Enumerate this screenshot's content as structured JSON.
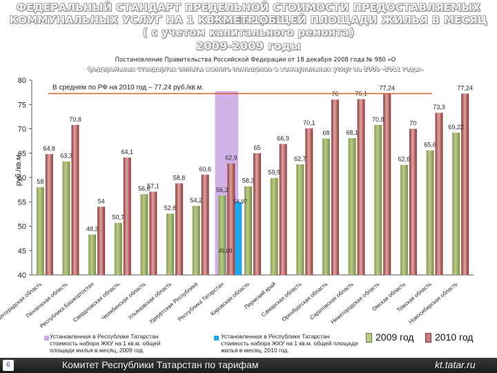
{
  "header": {
    "title_lines": [
      "ФЕДЕРАЛЬНЫЙ СТАНДАРТ ПРЕДЕЛЬНОЙ СТОИМОСТИ ПРЕДОСТАВЛЯЕМЫХ ЖИЛИЩНО-",
      "КОММУНАЛЬНЫХ УСЛУГ НА 1 КВ. МЕТР ОБЩЕЙ ПЛОЩАДИ ЖИЛЬЯ В МЕСЯЦ",
      "( с учетом капитального ремонта)",
      "2009-2009 годы"
    ],
    "subtitle_1": "Постановление Правительства Российской Федерации от 18 декабря 2008 года № 980 «О",
    "subtitle_2": "федеральных стандартах оплаты жилого помещения и коммунальных услуг на 2009 -2011 годы»"
  },
  "colors": {
    "bar_2009": "#b9c98a",
    "bar_2010": "#c77b7b",
    "tatarstan_highlight": "#c9a6e6",
    "tatarstan_2010_bar": "#21a6e8",
    "average_line": "#e05a2b"
  },
  "chart_data": {
    "type": "bar",
    "ylabel": "руб./кв.м.",
    "ylim": [
      40,
      80
    ],
    "yticks": [
      40,
      45,
      50,
      55,
      60,
      65,
      70,
      75,
      80
    ],
    "average_label": "В среднем по РФ на 2010 год – 77,24 руб./кв.м.",
    "average_value": 77.24,
    "categories": [
      "Волгоградская область",
      "Пензенская область",
      "Республика Башкортостан",
      "Свердловская область",
      "Челябинская область",
      "Ульяновская область",
      "Удмуртская Республика",
      "Республика Татарстан",
      "Кировская область",
      "Пермский край",
      "Самарская область",
      "Оренбургская область",
      "Саратовская область",
      "Нижегородская область",
      "Омская область",
      "Томская область",
      "Новосибирская область"
    ],
    "series": [
      {
        "name": "2009 год",
        "values": [
          58,
          63.3,
          48.3,
          50.7,
          56.6,
          52.6,
          54.2,
          56.3,
          58.2,
          59.9,
          62.7,
          68,
          68.1,
          70.8,
          62.6,
          65.6,
          69.22
        ]
      },
      {
        "name": "2010 год",
        "values": [
          64.8,
          70.8,
          54,
          64.1,
          57.1,
          58.8,
          60.6,
          62.9,
          65,
          66.9,
          70.1,
          76,
          76.1,
          77.24,
          70,
          73.3,
          77.24
        ]
      }
    ],
    "tatarstan_set_by_rt": [
      {
        "label": "45,09",
        "value": 45.09
      },
      {
        "label": "54,97",
        "value": 54.97
      }
    ],
    "data_labels_2009": [
      "58",
      "63,3",
      "48,3",
      "50,7",
      "56,6",
      "52,6",
      "54,2",
      "56,3",
      "58,2",
      "59,9",
      "62,7",
      "68",
      "68,1",
      "70,8",
      "62,6",
      "65,6",
      "69,22"
    ],
    "data_labels_2010": [
      "64,8",
      "70,8",
      "54",
      "64,1",
      "57,1",
      "58,8",
      "60,6",
      "62,9",
      "65",
      "66,9",
      "70,1",
      "76",
      "76,1",
      "77,24",
      "70",
      "73,3",
      "77,24"
    ]
  },
  "legend": {
    "item1": "Установленная в Республике Татарстан стоимость набора ЖКУ на 1 кв.м. общей площади жилья в месяц, 2009 год.",
    "item2": "Установленная в Республике Татарстан стоимость набора ЖКУ на 1 кв.м. общей площади жилья в месяц, 2010 год.",
    "year_2009": "2009 год",
    "year_2010": "2010 год"
  },
  "footer": {
    "page_number": "6",
    "organization": "Комитет Республики Татарстан по тарифам",
    "website": "kt.tatar.ru"
  }
}
